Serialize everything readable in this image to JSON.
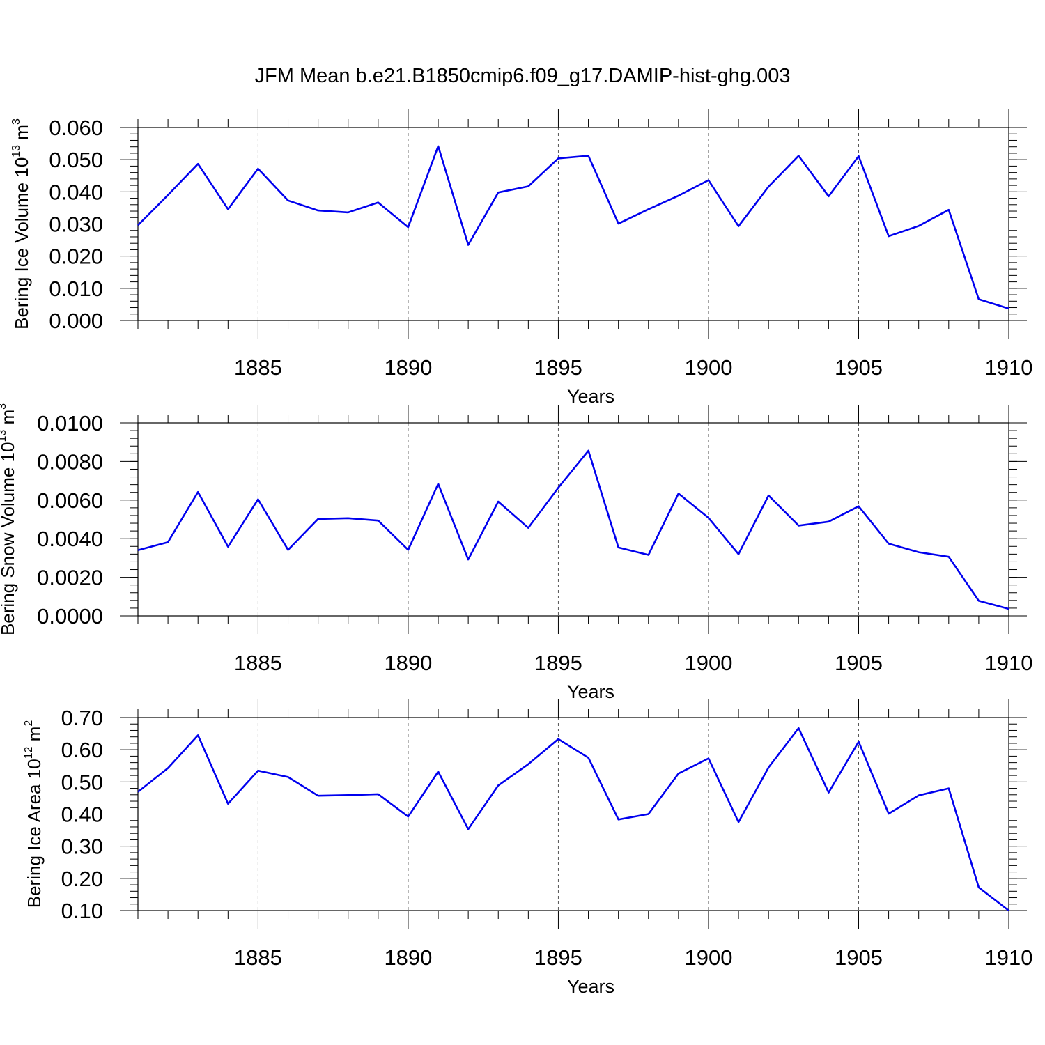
{
  "title": "JFM Mean b.e21.B1850cmip6.f09_g17.DAMIP-hist-ghg.003",
  "line_color": "#0000ee",
  "chart_data": [
    {
      "type": "line",
      "xlabel": "Years",
      "ylabel": "Bering Ice Volume 10",
      "ylabel_sup": "13",
      "ylabel_unit": " m",
      "ylabel_unit_sup": "3",
      "xlim": [
        1881,
        1910
      ],
      "ylim": [
        0.0,
        0.06
      ],
      "x_ticks": [
        1885,
        1890,
        1895,
        1900,
        1905,
        1910
      ],
      "y_ticks": [
        "0.000",
        "0.010",
        "0.020",
        "0.030",
        "0.040",
        "0.050",
        "0.060"
      ],
      "y_minor_step": 0.002,
      "grid": "dashed vertical at major x ticks",
      "x": [
        1881,
        1882,
        1883,
        1884,
        1885,
        1886,
        1887,
        1888,
        1889,
        1890,
        1891,
        1892,
        1893,
        1894,
        1895,
        1896,
        1897,
        1898,
        1899,
        1900,
        1901,
        1902,
        1903,
        1904,
        1905,
        1906,
        1907,
        1908,
        1909,
        1910
      ],
      "series": [
        {
          "values": [
            0.0296,
            0.039,
            0.0487,
            0.0346,
            0.0472,
            0.0373,
            0.0342,
            0.0336,
            0.0367,
            0.029,
            0.0542,
            0.0235,
            0.0398,
            0.0417,
            0.0504,
            0.0512,
            0.0301,
            0.0346,
            0.0388,
            0.0436,
            0.0293,
            0.0416,
            0.0512,
            0.0386,
            0.0511,
            0.0262,
            0.0294,
            0.0344,
            0.0066,
            0.0037
          ]
        }
      ]
    },
    {
      "type": "line",
      "xlabel": "Years",
      "ylabel": "Bering Snow Volume 10",
      "ylabel_sup": "13",
      "ylabel_unit": " m",
      "ylabel_unit_sup": "3",
      "xlim": [
        1881,
        1910
      ],
      "ylim": [
        0.0,
        0.01
      ],
      "x_ticks": [
        1885,
        1890,
        1895,
        1900,
        1905,
        1910
      ],
      "y_ticks": [
        "0.0000",
        "0.0020",
        "0.0040",
        "0.0060",
        "0.0080",
        "0.0100"
      ],
      "y_minor_step": 0.0004,
      "grid": "dashed vertical at major x ticks",
      "x": [
        1881,
        1882,
        1883,
        1884,
        1885,
        1886,
        1887,
        1888,
        1889,
        1890,
        1891,
        1892,
        1893,
        1894,
        1895,
        1896,
        1897,
        1898,
        1899,
        1900,
        1901,
        1902,
        1903,
        1904,
        1905,
        1906,
        1907,
        1908,
        1909,
        1910
      ],
      "series": [
        {
          "values": [
            0.0034,
            0.00382,
            0.00642,
            0.00358,
            0.00604,
            0.00342,
            0.00502,
            0.00506,
            0.00494,
            0.00342,
            0.00684,
            0.00292,
            0.00592,
            0.00456,
            0.00664,
            0.00856,
            0.00354,
            0.00316,
            0.00634,
            0.00508,
            0.0032,
            0.00624,
            0.00468,
            0.00488,
            0.00568,
            0.00374,
            0.0033,
            0.00306,
            0.00078,
            0.00036
          ]
        }
      ]
    },
    {
      "type": "line",
      "xlabel": "Years",
      "ylabel": "Bering Ice Area 10",
      "ylabel_sup": "12",
      "ylabel_unit": " m",
      "ylabel_unit_sup": "2",
      "xlim": [
        1881,
        1910
      ],
      "ylim": [
        0.1,
        0.7
      ],
      "x_ticks": [
        1885,
        1890,
        1895,
        1900,
        1905,
        1910
      ],
      "y_ticks": [
        "0.10",
        "0.20",
        "0.30",
        "0.40",
        "0.50",
        "0.60",
        "0.70"
      ],
      "y_minor_step": 0.02,
      "grid": "dashed vertical at major x ticks",
      "x": [
        1881,
        1882,
        1883,
        1884,
        1885,
        1886,
        1887,
        1888,
        1889,
        1890,
        1891,
        1892,
        1893,
        1894,
        1895,
        1896,
        1897,
        1898,
        1899,
        1900,
        1901,
        1902,
        1903,
        1904,
        1905,
        1906,
        1907,
        1908,
        1909,
        1910
      ],
      "series": [
        {
          "values": [
            0.469,
            0.543,
            0.645,
            0.432,
            0.535,
            0.515,
            0.457,
            0.459,
            0.462,
            0.392,
            0.532,
            0.353,
            0.489,
            0.555,
            0.633,
            0.575,
            0.383,
            0.4,
            0.526,
            0.573,
            0.375,
            0.545,
            0.667,
            0.467,
            0.625,
            0.401,
            0.458,
            0.48,
            0.172,
            0.1
          ]
        }
      ]
    }
  ]
}
